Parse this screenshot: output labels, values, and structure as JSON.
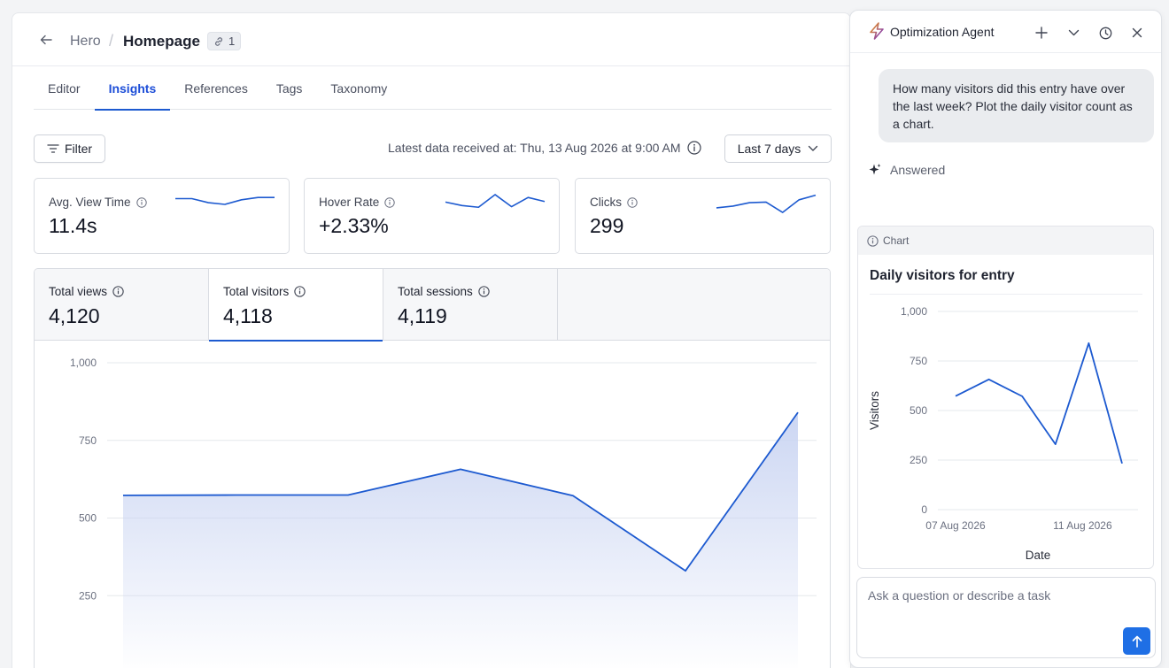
{
  "breadcrumb": {
    "parent": "Hero",
    "current": "Homepage",
    "link_count": "1"
  },
  "tabs": [
    "Editor",
    "Insights",
    "References",
    "Tags",
    "Taxonomy"
  ],
  "active_tab": "Insights",
  "toolbar": {
    "filter_label": "Filter",
    "latest_text": "Latest data received at: Thu, 13 Aug 2026 at 9:00 AM",
    "range_label": "Last 7 days"
  },
  "kpis": [
    {
      "label": "Avg. View Time",
      "value": "11.4s",
      "trend": [
        3.0,
        3.0,
        2.3,
        2.0,
        2.8,
        3.2,
        3.2
      ]
    },
    {
      "label": "Hover Rate",
      "value": "+2.33%",
      "trend": [
        2.4,
        1.8,
        1.5,
        3.7,
        1.6,
        3.2,
        2.5
      ]
    },
    {
      "label": "Clicks",
      "value": "299",
      "trend": [
        1.4,
        1.7,
        2.3,
        2.4,
        0.6,
        2.8,
        3.6
      ]
    }
  ],
  "stats": [
    {
      "label": "Total views",
      "value": "4,120"
    },
    {
      "label": "Total visitors",
      "value": "4,118"
    },
    {
      "label": "Total sessions",
      "value": "4,119"
    }
  ],
  "colors": {
    "accent": "#1d5ad0",
    "fill": "#c9d4f2",
    "grid": "#e6e8ec"
  },
  "agent": {
    "title": "Optimization Agent",
    "question": "How many visitors did this entry have over the last week? Plot the daily visitor count as a chart.",
    "status": "Answered",
    "card_label": "Chart",
    "input_placeholder": "Ask a question or describe a task"
  },
  "chart_data": [
    {
      "type": "area",
      "title": "",
      "x": [
        "",
        "",
        "",
        "",
        "",
        "",
        ""
      ],
      "series": [
        {
          "values": [
            573,
            574,
            574,
            657,
            572,
            330,
            840
          ]
        }
      ],
      "ylim": [
        0,
        1000
      ],
      "yticks": [
        "0",
        "250",
        "500",
        "750",
        "1,000"
      ],
      "grid": true
    },
    {
      "type": "line",
      "title": "Daily visitors for entry",
      "xlabel": "Date",
      "ylabel": "Visitors",
      "x_tick_labels": [
        "07 Aug 2026",
        "11 Aug 2026"
      ],
      "yticks": [
        "0",
        "250",
        "500",
        "750",
        "1,000"
      ],
      "series": [
        {
          "values": [
            573,
            657,
            572,
            330,
            840,
            233
          ]
        }
      ],
      "ylim": [
        0,
        1000
      ],
      "grid": true
    }
  ]
}
